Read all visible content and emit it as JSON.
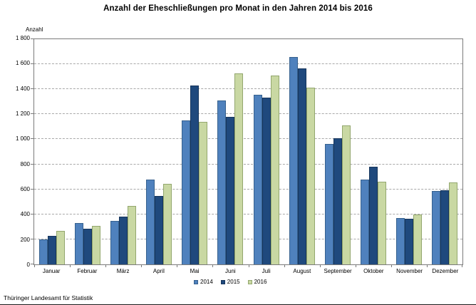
{
  "header": {
    "title": "Anzahl der Eheschließungen pro Monat in den Jahren 2014 bis 2016"
  },
  "footer": {
    "source": "Thüringer Landesamt für Statistik"
  },
  "chart_data": {
    "type": "bar",
    "title": "Anzahl der Eheschließungen pro Monat in den Jahren 2014 bis 2016",
    "xlabel": "",
    "ylabel": "Anzahl",
    "ylim": [
      0,
      1800
    ],
    "y_tick_step": 200,
    "y_tick_labels": [
      "0",
      "200",
      "400",
      "600",
      "800",
      "1 000",
      "1 200",
      "1 400",
      "1 600",
      "1 800"
    ],
    "grid": "horizontal-dashed",
    "legend_position": "bottom-center",
    "categories": [
      "Januar",
      "Februar",
      "März",
      "April",
      "Mai",
      "Juni",
      "Juli",
      "August",
      "September",
      "Oktober",
      "November",
      "Dezember"
    ],
    "series": [
      {
        "name": "2014",
        "color": "#4f81bd",
        "border_color": "#36618e",
        "values": [
          200,
          330,
          350,
          680,
          1150,
          1310,
          1355,
          1655,
          960,
          680,
          370,
          585
        ]
      },
      {
        "name": "2015",
        "color": "#1f497d",
        "border_color": "#16355c",
        "values": [
          230,
          285,
          380,
          545,
          1430,
          1180,
          1335,
          1565,
          1010,
          780,
          365,
          595
        ]
      },
      {
        "name": "2016",
        "color": "#c9d8a3",
        "border_color": "#93a76e",
        "values": [
          265,
          310,
          470,
          645,
          1140,
          1525,
          1510,
          1410,
          1110,
          660,
          400,
          655
        ]
      }
    ],
    "source": "Thüringer Landesamt für Statistik"
  }
}
